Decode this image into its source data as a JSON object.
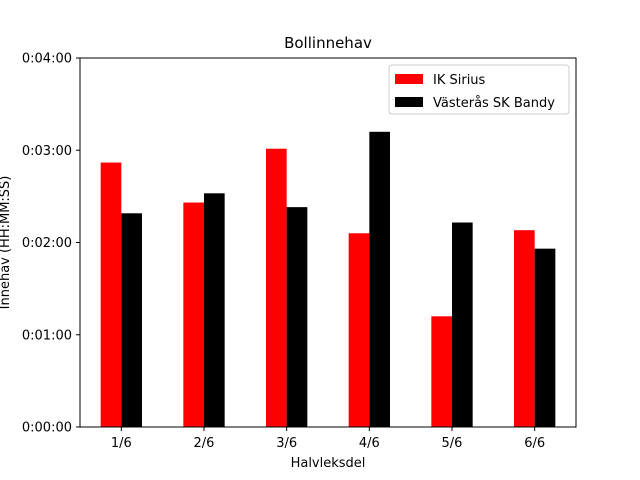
{
  "chart_data": {
    "type": "bar",
    "title": "Bollinnehav",
    "xlabel": "Halvleksdel",
    "ylabel": "Innehav (HH:MM:SS)",
    "categories": [
      "1/6",
      "2/6",
      "3/6",
      "4/6",
      "5/6",
      "6/6"
    ],
    "y_unit": "seconds",
    "ylim": [
      0,
      240
    ],
    "y_ticks": [
      0,
      60,
      120,
      180,
      240
    ],
    "y_tick_labels": [
      "0:00:00",
      "0:01:00",
      "0:02:00",
      "0:03:00",
      "0:04:00"
    ],
    "grid": false,
    "legend_position": "top-right",
    "series": [
      {
        "name": "IK Sirius",
        "color": "#ff0000",
        "values": [
          172,
          146,
          181,
          126,
          72,
          128
        ]
      },
      {
        "name": "Västerås SK Bandy",
        "color": "#000000",
        "values": [
          139,
          152,
          143,
          192,
          133,
          116
        ]
      }
    ]
  }
}
